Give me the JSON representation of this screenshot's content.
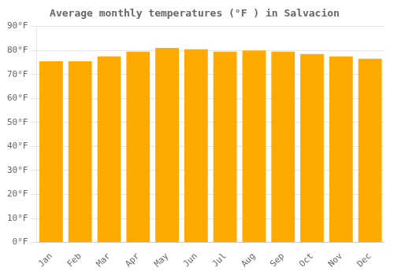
{
  "chart_data": {
    "type": "bar",
    "title": "Average monthly temperatures (°F ) in Salvacion",
    "categories": [
      "Jan",
      "Feb",
      "Mar",
      "Apr",
      "May",
      "Jun",
      "Jul",
      "Aug",
      "Sep",
      "Oct",
      "Nov",
      "Dec"
    ],
    "values": [
      75.5,
      75.5,
      77.5,
      79.5,
      81.0,
      80.5,
      79.5,
      80.0,
      79.5,
      78.5,
      77.5,
      76.5
    ],
    "color": "#FFAA00",
    "ylim": [
      0,
      90
    ],
    "yticks": [
      {
        "value": 0,
        "label": "0°F"
      },
      {
        "value": 10,
        "label": "10°F"
      },
      {
        "value": 20,
        "label": "20°F"
      },
      {
        "value": 30,
        "label": "30°F"
      },
      {
        "value": 40,
        "label": "40°F"
      },
      {
        "value": 50,
        "label": "50°F"
      },
      {
        "value": 60,
        "label": "60°F"
      },
      {
        "value": 70,
        "label": "70°F"
      },
      {
        "value": 80,
        "label": "80°F"
      },
      {
        "value": 90,
        "label": "90°F"
      }
    ],
    "grid": true
  }
}
